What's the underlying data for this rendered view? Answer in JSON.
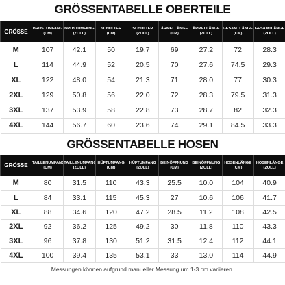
{
  "tables": [
    {
      "title": "GRÖSSENTABELLE OBERTEILE",
      "header": [
        [
          "GRÖSSE"
        ],
        [
          "BRUSTUMFANG",
          "(CM)"
        ],
        [
          "BRUSTUMFANG",
          "(ZOLL)"
        ],
        [
          "SCHULTER",
          "(CM)"
        ],
        [
          "SCHULTER",
          "(ZOLL)"
        ],
        [
          "ÄRMELLÄNGE",
          "(CM)"
        ],
        [
          "ÄRMELLÄNGE",
          "(ZOLL)"
        ],
        [
          "GESAMTLÄNGE",
          "(CM)"
        ],
        [
          "GESAMTLÄNGE",
          "(ZOLL)"
        ]
      ],
      "rows": [
        [
          "M",
          "107",
          "42.1",
          "50",
          "19.7",
          "69",
          "27.2",
          "72",
          "28.3"
        ],
        [
          "L",
          "114",
          "44.9",
          "52",
          "20.5",
          "70",
          "27.6",
          "74.5",
          "29.3"
        ],
        [
          "XL",
          "122",
          "48.0",
          "54",
          "21.3",
          "71",
          "28.0",
          "77",
          "30.3"
        ],
        [
          "2XL",
          "129",
          "50.8",
          "56",
          "22.0",
          "72",
          "28.3",
          "79.5",
          "31.3"
        ],
        [
          "3XL",
          "137",
          "53.9",
          "58",
          "22.8",
          "73",
          "28.7",
          "82",
          "32.3"
        ],
        [
          "4XL",
          "144",
          "56.7",
          "60",
          "23.6",
          "74",
          "29.1",
          "84.5",
          "33.3"
        ]
      ]
    },
    {
      "title": "GRÖSSENTABELLE HOSEN",
      "header": [
        [
          "GRÖSSE"
        ],
        [
          "TAILLENUMFANG",
          "(CM)"
        ],
        [
          "TAILLENUMFANG",
          "(ZOLL)"
        ],
        [
          "HÜFTUMFANG",
          "(CM)"
        ],
        [
          "HÜFTUMFANG",
          "(ZOLL)"
        ],
        [
          "BEINÖFFNUNG",
          "(CM)"
        ],
        [
          "BEINÖFFNUNG",
          "(ZOLL)"
        ],
        [
          "HOSENLÄNGE",
          "(CM)"
        ],
        [
          "HOSENLÄNGE",
          "(ZOLL)"
        ]
      ],
      "rows": [
        [
          "M",
          "80",
          "31.5",
          "110",
          "43.3",
          "25.5",
          "10.0",
          "104",
          "40.9"
        ],
        [
          "L",
          "84",
          "33.1",
          "115",
          "45.3",
          "27",
          "10.6",
          "106",
          "41.7"
        ],
        [
          "XL",
          "88",
          "34.6",
          "120",
          "47.2",
          "28.5",
          "11.2",
          "108",
          "42.5"
        ],
        [
          "2XL",
          "92",
          "36.2",
          "125",
          "49.2",
          "30",
          "11.8",
          "110",
          "43.3"
        ],
        [
          "3XL",
          "96",
          "37.8",
          "130",
          "51.2",
          "31.5",
          "12.4",
          "112",
          "44.1"
        ],
        [
          "4XL",
          "100",
          "39.4",
          "135",
          "53.1",
          "33",
          "13.0",
          "114",
          "44.9"
        ]
      ]
    }
  ],
  "footer": "Messungen können aufgrund manueller Messung um 1-3 cm variieren."
}
